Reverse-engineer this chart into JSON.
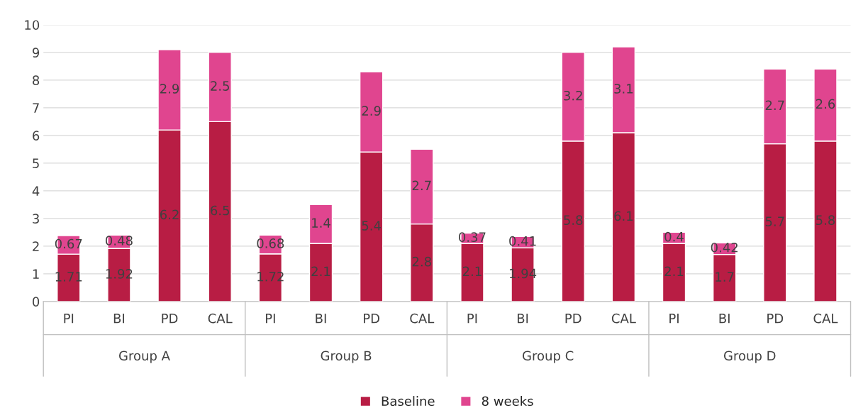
{
  "chart_data": {
    "type": "bar",
    "stacked": true,
    "categories": [
      "PI",
      "BI",
      "PD",
      "CAL",
      "PI",
      "BI",
      "PD",
      "CAL",
      "PI",
      "BI",
      "PD",
      "CAL",
      "PI",
      "BI",
      "PD",
      "CAL"
    ],
    "series": [
      {
        "name": "Baseline",
        "color": "#b81d44",
        "values": [
          1.71,
          1.92,
          6.2,
          6.5,
          1.72,
          2.1,
          5.4,
          2.8,
          2.1,
          1.94,
          5.8,
          6.1,
          2.1,
          1.7,
          5.7,
          5.8
        ]
      },
      {
        "name": "8 weeks",
        "color": "#e0458f",
        "values": [
          0.67,
          0.48,
          2.9,
          2.5,
          0.68,
          1.4,
          2.9,
          2.7,
          0.37,
          0.41,
          3.2,
          3.1,
          0.4,
          0.42,
          2.7,
          2.6
        ]
      }
    ],
    "annotations": [
      "Group A",
      "Group B",
      "Group C",
      "Group D"
    ],
    "ylim": [
      0,
      10
    ],
    "yticks": [
      0,
      1,
      2,
      3,
      4,
      5,
      6,
      7,
      8,
      9,
      10
    ],
    "grid": "y",
    "legend": "bottom",
    "data_labels": true
  }
}
